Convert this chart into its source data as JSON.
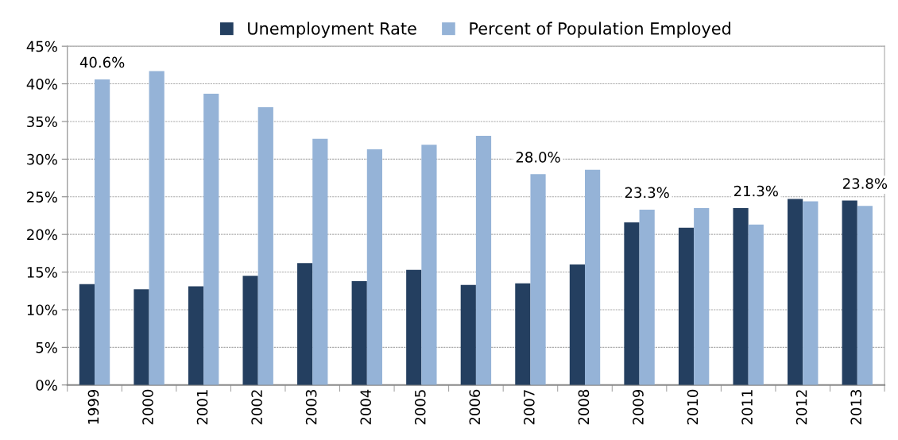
{
  "chart_data": {
    "type": "bar",
    "categories": [
      "1999",
      "2000",
      "2001",
      "2002",
      "2003",
      "2004",
      "2005",
      "2006",
      "2007",
      "2008",
      "2009",
      "2010",
      "2011",
      "2012",
      "2013"
    ],
    "series": [
      {
        "name": "Unemployment Rate",
        "color": "#243f60",
        "values": [
          13.4,
          12.7,
          13.1,
          14.5,
          16.2,
          13.8,
          15.3,
          13.3,
          13.5,
          16.0,
          21.6,
          20.9,
          23.5,
          24.7,
          24.5
        ]
      },
      {
        "name": "Percent of Population Employed",
        "color": "#95b3d7",
        "values": [
          40.6,
          41.7,
          38.7,
          36.9,
          32.7,
          31.3,
          31.9,
          33.1,
          28.0,
          28.6,
          23.3,
          23.5,
          21.3,
          24.4,
          23.8
        ],
        "value_labels": [
          "40.6%",
          null,
          null,
          null,
          null,
          null,
          null,
          null,
          "28.0%",
          null,
          "23.3%",
          null,
          "21.3%",
          null,
          "23.8%"
        ]
      }
    ],
    "ylim": [
      0,
      45
    ],
    "yticks": [
      {
        "value": 0,
        "label": "0%"
      },
      {
        "value": 5,
        "label": "5%"
      },
      {
        "value": 10,
        "label": "10%"
      },
      {
        "value": 15,
        "label": "15%"
      },
      {
        "value": 20,
        "label": "20%"
      },
      {
        "value": 25,
        "label": "25%"
      },
      {
        "value": 30,
        "label": "30%"
      },
      {
        "value": 35,
        "label": "35%"
      },
      {
        "value": 40,
        "label": "40%"
      },
      {
        "value": 45,
        "label": "45%"
      }
    ],
    "grid": "y",
    "legend": "top"
  }
}
